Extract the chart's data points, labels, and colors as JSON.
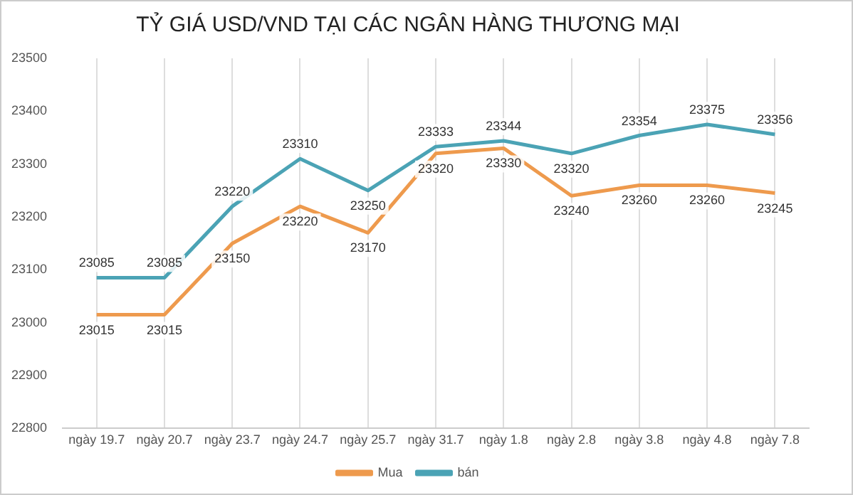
{
  "chart_data": {
    "type": "line",
    "title": "TỶ GIÁ USD/VND TẠI CÁC NGÂN HÀNG THƯƠNG MẠI",
    "categories": [
      "ngày 19.7",
      "ngày 20.7",
      "ngày 23.7",
      "ngày 24.7",
      "ngày 25.7",
      "ngày 31.7",
      "ngày 1.8",
      "ngày 2.8",
      "ngày 3.8",
      "ngày 4.8",
      "ngày 7.8"
    ],
    "series": [
      {
        "name": "Mua",
        "color": "#ee9a4d",
        "values": [
          23015,
          23015,
          23150,
          23220,
          23170,
          23320,
          23330,
          23240,
          23260,
          23260,
          23245
        ]
      },
      {
        "name": "bán",
        "color": "#4ba3b5",
        "values": [
          23085,
          23085,
          23220,
          23310,
          23250,
          23333,
          23344,
          23320,
          23354,
          23375,
          23356
        ]
      }
    ],
    "ylim": [
      22800,
      23500
    ],
    "yticks": [
      22800,
      22900,
      23000,
      23100,
      23200,
      23300,
      23400,
      23500
    ],
    "grid": "x",
    "legend": "bottom",
    "marker": "none",
    "line_style": "solid",
    "data_labels": true
  }
}
